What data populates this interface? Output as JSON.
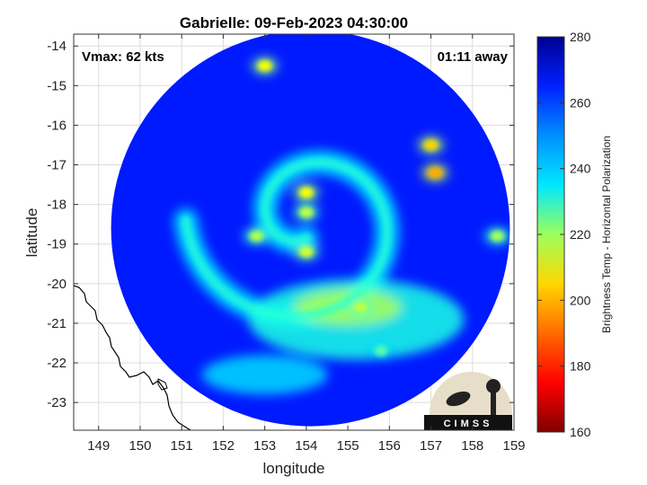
{
  "chart_data": {
    "type": "heatmap",
    "title": "Gabrielle: 09-Feb-2023 04:30:00",
    "xlabel": "longitude",
    "ylabel": "latitude",
    "xlim": [
      148.4,
      159.0
    ],
    "ylim": [
      -23.7,
      -13.7
    ],
    "xticks": [
      149,
      150,
      151,
      152,
      153,
      154,
      155,
      156,
      157,
      158,
      159
    ],
    "yticks": [
      -14,
      -15,
      -16,
      -17,
      -18,
      -19,
      -20,
      -21,
      -22,
      -23
    ],
    "grid": true,
    "colorbar": {
      "label": "Brightness Temp - Horizontal Polarization",
      "range": [
        160,
        280
      ],
      "ticks": [
        160,
        180,
        200,
        220,
        240,
        260,
        280
      ],
      "colormap": "jet"
    },
    "annotations": {
      "vmax": "Vmax: 62 kts",
      "time_offset": "01:11 away"
    },
    "swath": {
      "center_lon": 154.1,
      "center_lat": -18.6,
      "radius_deg_lon": 4.8,
      "radius_deg_lat": 5.0,
      "background_tb": 262
    },
    "storm_center": {
      "lon": 154.0,
      "lat": -18.4
    },
    "features": [
      {
        "kind": "spiral_band",
        "tb": 238,
        "turns": 1.25,
        "start_radius_deg": 0.45,
        "end_radius_deg": 2.9
      },
      {
        "kind": "eyewall_blob",
        "lon": 154.0,
        "lat": -17.7,
        "tb": 205
      },
      {
        "kind": "eyewall_blob",
        "lon": 154.0,
        "lat": -18.2,
        "tb": 212
      },
      {
        "kind": "eyewall_blob",
        "lon": 154.0,
        "lat": -19.2,
        "tb": 210
      },
      {
        "kind": "eyewall_blob",
        "lon": 152.8,
        "lat": -18.8,
        "tb": 214
      },
      {
        "kind": "rainband",
        "lon": 155.3,
        "lat": -20.6,
        "tb": 212
      },
      {
        "kind": "rainband",
        "lon": 155.8,
        "lat": -21.7,
        "tb": 225
      },
      {
        "kind": "rainband",
        "lon": 157.0,
        "lat": -16.5,
        "tb": 200
      },
      {
        "kind": "rainband",
        "lon": 157.1,
        "lat": -17.2,
        "tb": 195
      },
      {
        "kind": "rainband",
        "lon": 153.0,
        "lat": -14.5,
        "tb": 205
      },
      {
        "kind": "rainband",
        "lon": 158.6,
        "lat": -18.8,
        "tb": 215
      }
    ],
    "coastline_label": "",
    "logo_text": "CIMSS"
  }
}
